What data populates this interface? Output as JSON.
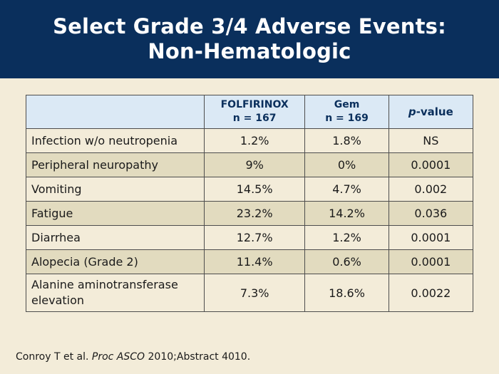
{
  "title": {
    "line1": "Select Grade 3/4 Adverse Events:",
    "line2": "Non-Hematologic"
  },
  "table": {
    "headers": {
      "folfirinox_name": "FOLFIRINOX",
      "folfirinox_n": "n = 167",
      "gem_name": "Gem",
      "gem_n": "n = 169",
      "pvalue_italic": "p",
      "pvalue_rest": "-value"
    },
    "rows": [
      {
        "event": "Infection w/o neutropenia",
        "folfirinox": "1.2%",
        "gem": "1.8%",
        "p": "NS"
      },
      {
        "event": "Peripheral neuropathy",
        "folfirinox": "9%",
        "gem": "0%",
        "p": "0.0001"
      },
      {
        "event": "Vomiting",
        "folfirinox": "14.5%",
        "gem": "4.7%",
        "p": "0.002"
      },
      {
        "event": "Fatigue",
        "folfirinox": "23.2%",
        "gem": "14.2%",
        "p": "0.036"
      },
      {
        "event": "Diarrhea",
        "folfirinox": "12.7%",
        "gem": "1.2%",
        "p": "0.0001"
      },
      {
        "event": "Alopecia (Grade 2)",
        "folfirinox": "11.4%",
        "gem": "0.6%",
        "p": "0.0001"
      },
      {
        "event": "Alanine aminotransferase elevation",
        "folfirinox": "7.3%",
        "gem": "18.6%",
        "p": "0.0022"
      }
    ]
  },
  "citation": {
    "authors": "Conroy T et al.",
    "journal": "Proc ASCO",
    "details": "2010;Abstract 4010."
  },
  "colors": {
    "title_bar": "#0a2f5c",
    "background": "#f3ecd9",
    "header_row": "#dbe9f5",
    "stripe": "#e2dbbf"
  }
}
